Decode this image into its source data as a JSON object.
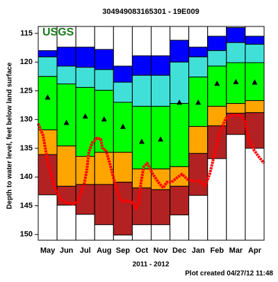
{
  "chart_data": {
    "type": "percentile-bands",
    "title": "304949083165301 - 19E009",
    "logo": "USGS",
    "y_label": "Depth to water level, feet below land surface",
    "x_label": "2011 - 2012",
    "footer": "Plot created 04/27/12 11:48",
    "categories": [
      "May",
      "Jun",
      "Jul",
      "Aug",
      "Sep",
      "Oct",
      "Nov",
      "Dec",
      "Jan",
      "Feb",
      "Mar",
      "Apr"
    ],
    "ylim": [
      113.8,
      151
    ],
    "y_inverted": true,
    "yticks": [
      115,
      120,
      125,
      130,
      135,
      140,
      145,
      150
    ],
    "band_colors": [
      "#0000ff",
      "#40e0d8",
      "#00ff00",
      "#ffa500",
      "#b22222"
    ],
    "boundaries": [
      [
        118.0,
        117.4,
        117.4,
        117.8,
        120.7,
        118.9,
        118.9,
        116.2,
        117.4,
        115.5,
        114.0,
        115.5
      ],
      [
        119.1,
        120.7,
        120.9,
        121.3,
        123.5,
        122.3,
        122.3,
        120.0,
        119.1,
        118.0,
        116.6,
        116.9
      ],
      [
        122.5,
        123.8,
        124.4,
        124.9,
        127.0,
        127.7,
        127.7,
        127.2,
        122.6,
        120.7,
        120.1,
        120.1
      ],
      [
        131.8,
        134.6,
        136.4,
        135.7,
        135.7,
        138.6,
        138.6,
        138.2,
        131.2,
        127.7,
        127.2,
        126.7
      ],
      [
        136.1,
        141.6,
        141.3,
        141.3,
        140.9,
        141.9,
        142.2,
        141.6,
        135.9,
        131.1,
        128.9,
        128.8
      ],
      [
        143.1,
        144.9,
        146.5,
        148.3,
        150.1,
        148.3,
        148.3,
        146.6,
        143.2,
        136.8,
        132.6,
        135.0
      ]
    ],
    "median": [
      126.1,
      130.5,
      129.4,
      129.9,
      131.2,
      133.8,
      133.4,
      127.0,
      127.0,
      123.7,
      123.4,
      123.5
    ],
    "line": {
      "color": "#ff0000",
      "x": [
        0,
        0.26,
        0.55,
        0.85,
        1.14,
        1.48,
        1.85,
        2.1,
        2.29,
        2.44,
        2.58,
        2.69,
        2.88,
        3.14,
        3.32,
        3.43,
        3.58,
        3.8,
        4.06,
        4.32,
        4.54,
        4.8,
        5.06,
        5.2,
        5.35,
        5.46,
        5.61,
        5.79,
        6.09,
        6.38,
        6.64,
        6.83,
        7.08,
        7.38,
        7.64,
        7.93,
        8.23,
        8.6,
        8.86,
        9.11,
        9.34,
        9.59,
        9.96,
        10.33,
        10.7,
        10.96,
        11.18,
        11.44,
        11.7,
        11.99
      ],
      "values": [
        130.7,
        132.8,
        138.2,
        141.6,
        143.7,
        144.5,
        144.7,
        144.3,
        142.5,
        141.3,
        138.8,
        135.6,
        134.0,
        133.2,
        133.4,
        135.2,
        135.2,
        137.6,
        140.9,
        143.7,
        144.3,
        144.1,
        144.5,
        145.5,
        144.3,
        140.9,
        138.2,
        137.6,
        139.5,
        140.9,
        141.9,
        140.9,
        140.9,
        140.1,
        139.5,
        140.4,
        140.7,
        140.7,
        141.6,
        139.5,
        136.4,
        132.8,
        129.8,
        129.2,
        129.2,
        130.0,
        133.4,
        135.2,
        136.4,
        137.6
      ]
    }
  }
}
